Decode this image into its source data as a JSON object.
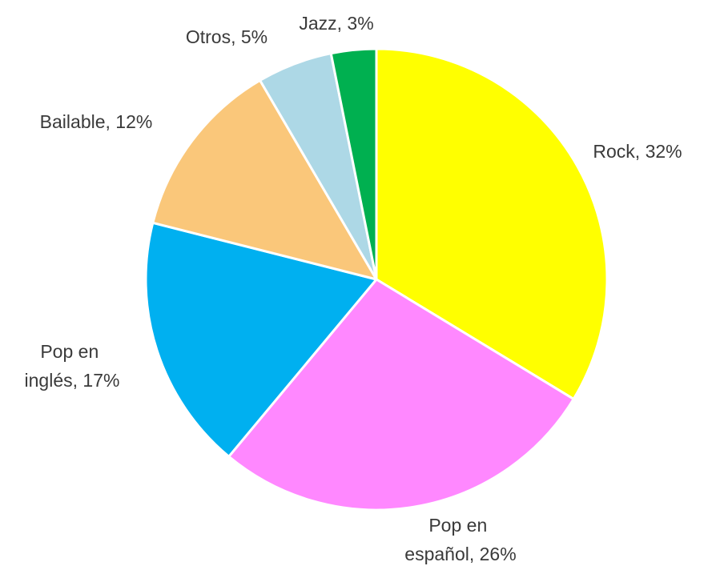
{
  "chart_data": {
    "type": "pie",
    "title": "",
    "slices": [
      {
        "label": "Rock",
        "value": 32,
        "color": "#ffff00",
        "label_lines": [
          "Rock, 32%"
        ]
      },
      {
        "label": "Pop en español",
        "value": 26,
        "color": "#ff88ff",
        "label_lines": [
          "Pop en",
          "español, 26%"
        ]
      },
      {
        "label": "Pop en inglés",
        "value": 17,
        "color": "#00b0f0",
        "label_lines": [
          "Pop en",
          "inglés, 17%"
        ]
      },
      {
        "label": "Bailable",
        "value": 12,
        "color": "#fac77a",
        "label_lines": [
          "Bailable, 12%"
        ]
      },
      {
        "label": "Otros",
        "value": 5,
        "color": "#add8e6",
        "label_lines": [
          "Otros, 5%"
        ]
      },
      {
        "label": "Jazz",
        "value": 3,
        "color": "#00b050",
        "label_lines": [
          "Jazz, 3%"
        ]
      }
    ]
  }
}
